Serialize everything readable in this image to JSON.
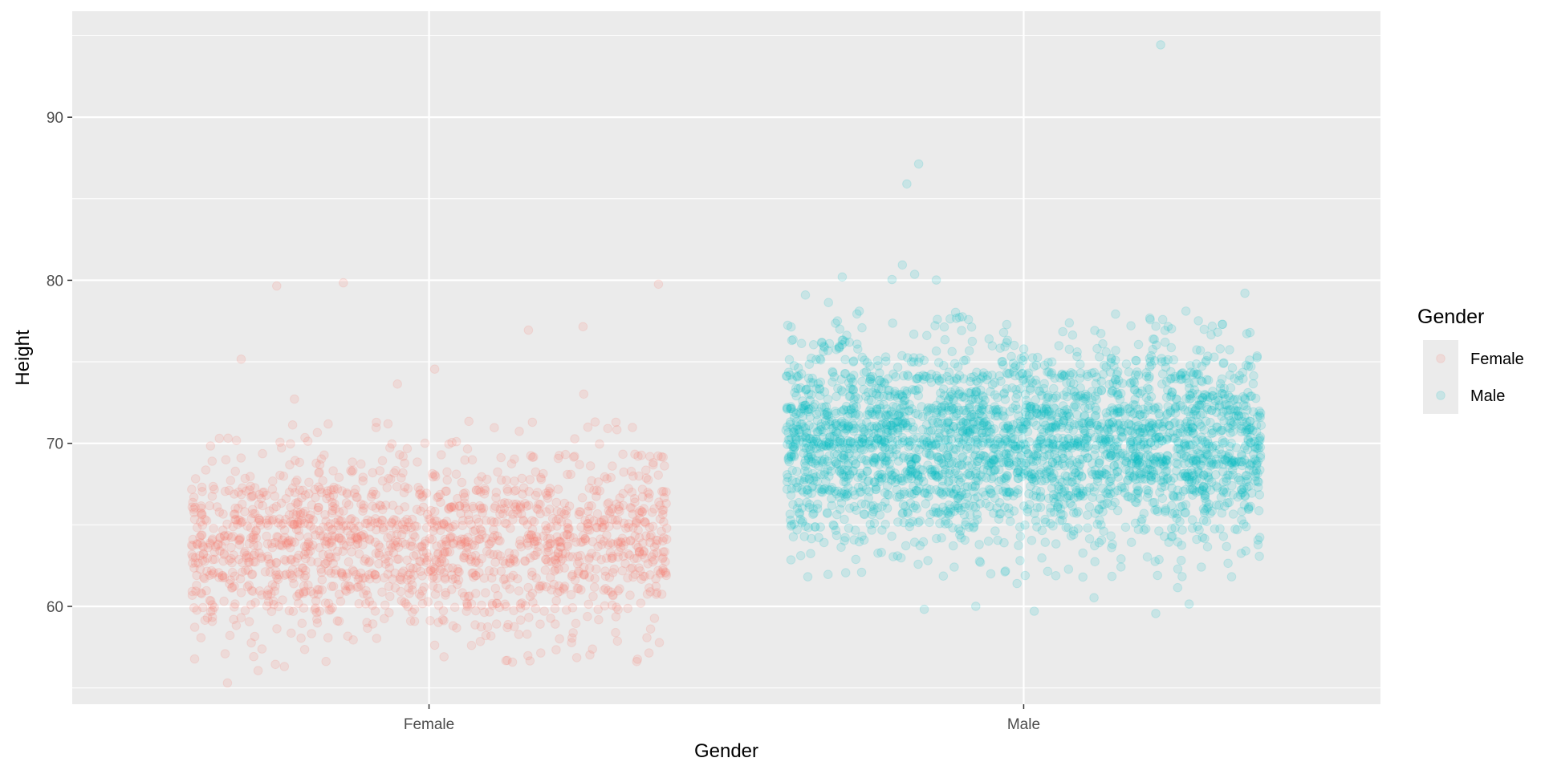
{
  "chart_data": {
    "type": "scatter",
    "jitter": true,
    "xlabel": "Gender",
    "ylabel": "Height",
    "categories": [
      "Female",
      "Male"
    ],
    "ylim": [
      54,
      96.5
    ],
    "yticks": [
      60,
      70,
      80,
      90
    ],
    "grid": true,
    "point_alpha": 0.15,
    "legend": {
      "title": "Gender",
      "position": "right",
      "entries": [
        "Female",
        "Male"
      ]
    },
    "series": [
      {
        "name": "Female",
        "color": "#F8766D",
        "n_points": 1600,
        "distribution": {
          "mean": 64.0,
          "sd": 2.8
        },
        "outliers": [
          80.2,
          76.7,
          76.8,
          79.8,
          79.9,
          74.9,
          74.7,
          73.4,
          72.7,
          72.7,
          56.2,
          57.0,
          57.2,
          56.3,
          55.6,
          56.9,
          58.3,
          58.1
        ]
      },
      {
        "name": "Male",
        "color": "#00BFC4",
        "n_points": 3000,
        "distribution": {
          "mean": 70.0,
          "sd": 3.0
        },
        "outliers": [
          94.4,
          86.2,
          86.9,
          81.1,
          80.3,
          80.2,
          80.7,
          80.2,
          79.1,
          79.3,
          78.5,
          78.3,
          59.9,
          59.9,
          59.9,
          60.4,
          60.4,
          60.7,
          60.8,
          61.8,
          62.1
        ]
      }
    ]
  }
}
